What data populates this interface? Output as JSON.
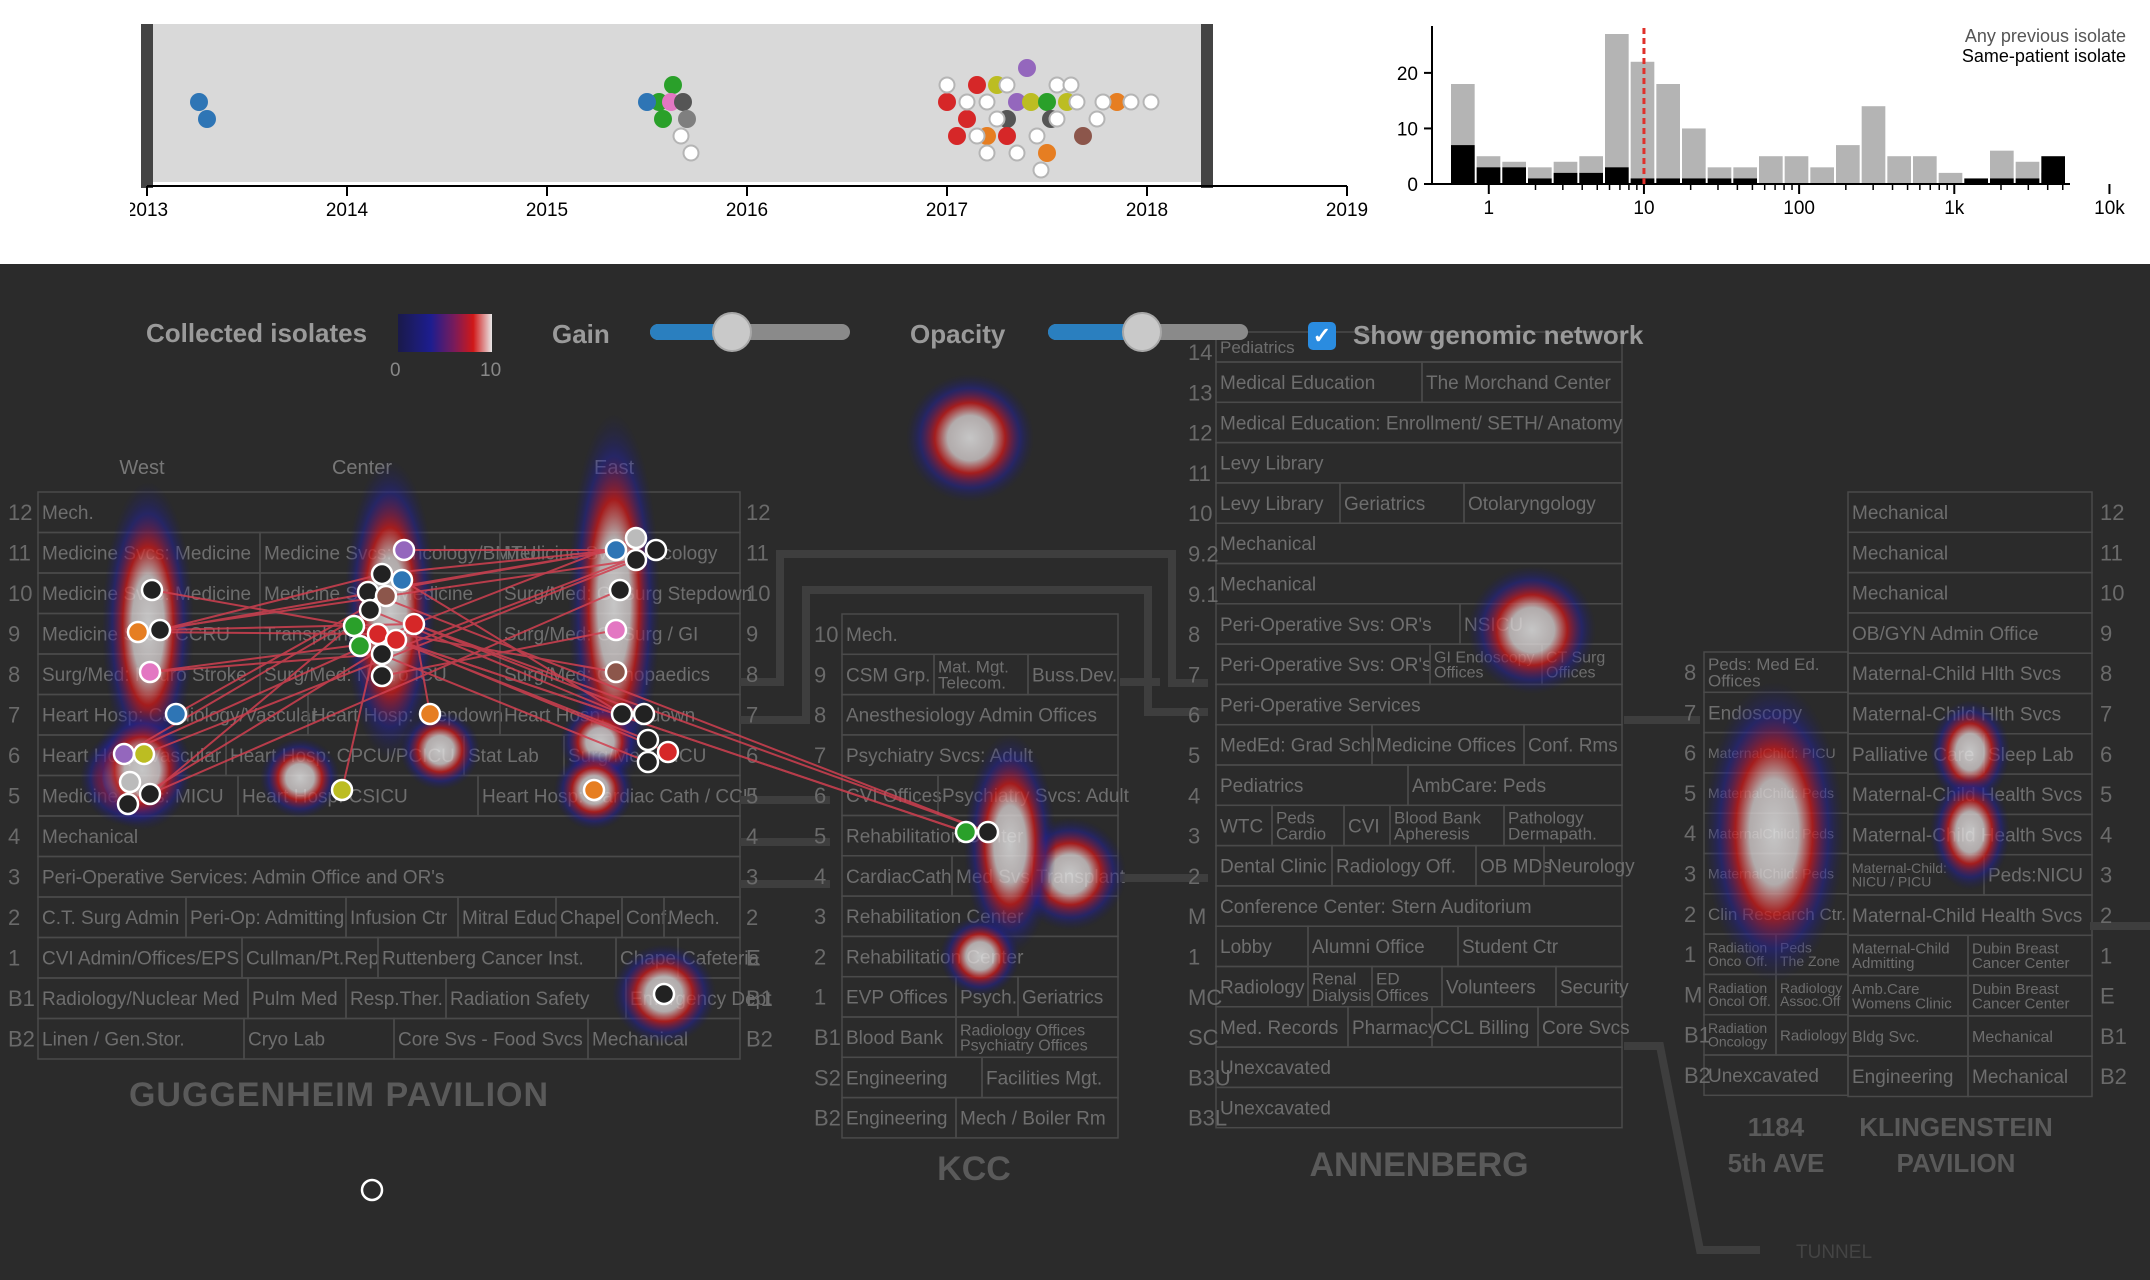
{
  "timeline": {
    "years": [
      "2013",
      "2014",
      "2015",
      "2016",
      "2017",
      "2018",
      "2019"
    ],
    "points": [
      {
        "year": 2013.26,
        "row": 0,
        "color": "#2e75b5",
        "filled": true
      },
      {
        "year": 2013.3,
        "row": 1,
        "color": "#2e75b5",
        "filled": true
      },
      {
        "year": 2015.56,
        "row": 0,
        "color": "#2aa02a",
        "filled": true
      },
      {
        "year": 2015.63,
        "row": -1,
        "color": "#2aa02a",
        "filled": true
      },
      {
        "year": 2015.62,
        "row": 0,
        "color": "#e377c2",
        "filled": true
      },
      {
        "year": 2015.58,
        "row": 1,
        "color": "#2aa02a",
        "filled": true
      },
      {
        "year": 2015.68,
        "row": 0,
        "color": "#555555",
        "filled": true
      },
      {
        "year": 2015.7,
        "row": 1,
        "color": "#7f7f7f",
        "filled": true
      },
      {
        "year": 2015.5,
        "row": 0,
        "color": "#2e75b5",
        "filled": true
      },
      {
        "year": 2015.67,
        "row": 2,
        "color": "#bbbbbb",
        "filled": false
      },
      {
        "year": 2015.72,
        "row": 3,
        "color": "#bbbbbb",
        "filled": false
      },
      {
        "year": 2017.0,
        "row": 0,
        "color": "#d62728",
        "filled": true
      },
      {
        "year": 2017.15,
        "row": -1,
        "color": "#d62728",
        "filled": true
      },
      {
        "year": 2017.25,
        "row": -1,
        "color": "#bcbd22",
        "filled": true
      },
      {
        "year": 2017.4,
        "row": -2,
        "color": "#9467bd",
        "filled": true
      },
      {
        "year": 2017.35,
        "row": 0,
        "color": "#9467bd",
        "filled": true
      },
      {
        "year": 2017.42,
        "row": 0,
        "color": "#bcbd22",
        "filled": true
      },
      {
        "year": 2017.3,
        "row": 1,
        "color": "#555555",
        "filled": true
      },
      {
        "year": 2017.5,
        "row": 0,
        "color": "#2aa02a",
        "filled": true
      },
      {
        "year": 2017.52,
        "row": 1,
        "color": "#555555",
        "filled": true
      },
      {
        "year": 2017.6,
        "row": 0,
        "color": "#bcbd22",
        "filled": true
      },
      {
        "year": 2017.1,
        "row": 1,
        "color": "#d62728",
        "filled": true
      },
      {
        "year": 2017.2,
        "row": 2,
        "color": "#e67e22",
        "filled": true
      },
      {
        "year": 2017.3,
        "row": 2,
        "color": "#d62728",
        "filled": true
      },
      {
        "year": 2017.5,
        "row": 3,
        "color": "#e67e22",
        "filled": true
      },
      {
        "year": 2017.68,
        "row": 2,
        "color": "#8c564b",
        "filled": true
      },
      {
        "year": 2017.85,
        "row": 0,
        "color": "#e67e22",
        "filled": true
      },
      {
        "year": 2017.05,
        "row": 2,
        "color": "#d62728",
        "filled": true
      },
      {
        "year": 2017.1,
        "row": 0,
        "color": "#bbbbbb",
        "filled": false
      },
      {
        "year": 2017.2,
        "row": 0,
        "color": "#bbbbbb",
        "filled": false
      },
      {
        "year": 2017.25,
        "row": 1,
        "color": "#bbbbbb",
        "filled": false
      },
      {
        "year": 2017.15,
        "row": 2,
        "color": "#bbbbbb",
        "filled": false
      },
      {
        "year": 2017.2,
        "row": 3,
        "color": "#bbbbbb",
        "filled": false
      },
      {
        "year": 2017.45,
        "row": 2,
        "color": "#bbbbbb",
        "filled": false
      },
      {
        "year": 2017.35,
        "row": 3,
        "color": "#bbbbbb",
        "filled": false
      },
      {
        "year": 2017.47,
        "row": 4,
        "color": "#bbbbbb",
        "filled": false
      },
      {
        "year": 2017.55,
        "row": -1,
        "color": "#bbbbbb",
        "filled": false
      },
      {
        "year": 2017.62,
        "row": -1,
        "color": "#bbbbbb",
        "filled": false
      },
      {
        "year": 2017.55,
        "row": 1,
        "color": "#bbbbbb",
        "filled": false
      },
      {
        "year": 2017.65,
        "row": 0,
        "color": "#bbbbbb",
        "filled": false
      },
      {
        "year": 2017.75,
        "row": 1,
        "color": "#bbbbbb",
        "filled": false
      },
      {
        "year": 2017.78,
        "row": 0,
        "color": "#bbbbbb",
        "filled": false
      },
      {
        "year": 2017.92,
        "row": 0,
        "color": "#bbbbbb",
        "filled": false
      },
      {
        "year": 2018.02,
        "row": 0,
        "color": "#bbbbbb",
        "filled": false
      },
      {
        "year": 2017.3,
        "row": -1,
        "color": "#bbbbbb",
        "filled": false
      },
      {
        "year": 2017.0,
        "row": -1,
        "color": "#bbbbbb",
        "filled": false
      }
    ]
  },
  "histogram": {
    "legend_any": "Any previous isolate",
    "legend_same": "Same-patient isolate",
    "y_ticks": [
      "0",
      "10",
      "20"
    ],
    "x_ticks": [
      "1",
      "10",
      "100",
      "1k",
      "10k"
    ],
    "chart_data": {
      "type": "bar",
      "x_scale": "log",
      "ylim": [
        0,
        27
      ],
      "any_previous": [
        18,
        5,
        4,
        3,
        4,
        5,
        27,
        22,
        18,
        10,
        3,
        3,
        5,
        5,
        3,
        7,
        14,
        5,
        5,
        2,
        1,
        6,
        4,
        2
      ],
      "same_patient": [
        7,
        3,
        3,
        1,
        2,
        2,
        3,
        1,
        1,
        1,
        1,
        1,
        0,
        0,
        0,
        0,
        0,
        0,
        0,
        0,
        1,
        1,
        1,
        5
      ],
      "threshold": 10
    }
  },
  "controls": {
    "collected_label": "Collected isolates",
    "scale_min": "0",
    "scale_max": "10",
    "gain_label": "Gain",
    "gain_value": 0.41,
    "opacity_label": "Opacity",
    "opacity_value": 0.47,
    "network_label": "Show genomic network",
    "network_checked": true
  },
  "buildings": {
    "guggenheim": {
      "name": "GUGGENHEIM PAVILION",
      "wings": [
        "West",
        "Center",
        "East"
      ],
      "floors": [
        "12",
        "11",
        "10",
        "9",
        "8",
        "7",
        "6",
        "5",
        "4",
        "3",
        "2",
        "1",
        "B1",
        "B2"
      ],
      "right_floors": [
        "12",
        "11",
        "10",
        "9",
        "8",
        "7",
        "6",
        "5",
        "4",
        "3",
        "2",
        "E",
        "B1",
        "B2"
      ],
      "rooms": [
        "Mech.",
        "Medicine Svcs: Medicine",
        "Medicine Svcs: Oncology/BMTU",
        "Medicine Svcs: Oncology",
        "Medicine Svcs: Medicine",
        "Medicine Svcs: Medicine",
        "Surg/Med: GI Surg Stepdown",
        "Medicine Svcs: CCRU",
        "Transplant",
        "Surg/Med: GI Surg / GI",
        "Surg/Med: Neuro Stroke",
        "Surg/Med: Neuro ICU",
        "Surg/Med: Orthopaedics",
        "Heart Hosp: Cardiology/Vascular",
        "Heart Hosp: Stepdown",
        "Heart Hosp: Stepdown",
        "Heart Hosp: Vascular",
        "Heart Hosp: CPCU/PCICU",
        "Stat Lab",
        "Surg/Med: SICU",
        "Medicine Svcs: MICU",
        "Heart Hosp: CSICU",
        "Heart Hosp: Cardiac Cath / CCU",
        "Mechanical",
        "Peri-Operative Services:  Admin Office and OR's",
        "C.T. Surg Admin",
        "Peri-Op: Admitting",
        "Infusion Ctr",
        "Mitral Educ",
        "Chapel",
        "Conf.",
        "Mech.",
        "CVI Admin/Offices/EPS",
        "Cullman/Pt.Rep",
        "Ruttenberg Cancer Inst.",
        "Chapel",
        "Cafeteria",
        "Radiology/Nuclear Med",
        "Pulm Med",
        "Resp.Ther.",
        "Radiation Safety",
        "Emergency Dept",
        "Linen / Gen.Stor.",
        "Cryo Lab",
        "Core Svs - Food Svcs",
        "Mechanical"
      ]
    },
    "kcc": {
      "name": "KCC",
      "floors": [
        "10",
        "9",
        "8",
        "7",
        "6",
        "5",
        "4",
        "3",
        "2",
        "1",
        "B1",
        "S2",
        "B2"
      ],
      "rooms": [
        "Mech.",
        "CSM Grp.",
        "Mat. Mgt. Telecom.",
        "Buss.Dev.",
        "Anesthesiology Admin Offices",
        "Psychiatry Svcs:  Adult",
        "CVI Offices",
        "Psychiatry Svcs: Adult",
        "Rehabilitation Center",
        "CardiacCath",
        "Med Svs",
        "Transplant",
        "Rehabilitation Center",
        "Rehabilitation Center",
        "EVP Offices",
        "Psych.",
        "Geriatrics",
        "Blood Bank",
        "Radiology Offices Psychiatry Offices",
        "Engineering",
        "Facilities Mgt.",
        "Engineering",
        "Mech / Boiler Rm"
      ]
    },
    "annenberg": {
      "name": "ANNENBERG",
      "floors": [
        "14",
        "13",
        "12",
        "11",
        "10",
        "9.2",
        "9.1",
        "8",
        "7",
        "6",
        "5",
        "4",
        "3",
        "2",
        "M",
        "1",
        "MC",
        "SC",
        "B3U",
        "B3L"
      ],
      "rooms": [
        "Pediatrics",
        "Medical Education",
        "The Morchand Center",
        "Medical Education: Enrollment/ SETH/ Anatomy",
        "Levy Library",
        "Levy Library",
        "Geriatrics",
        "Otolaryngology",
        "Mechanical",
        "Mechanical",
        "Peri-Operative Svs: OR's",
        "NSICU",
        "Peri-Operative Svs: OR's",
        "GI Endoscopy Offices",
        "CT Surg Offices",
        "Peri-Operative Services",
        "MedEd: Grad Schl",
        "Medicine Offices",
        "Conf. Rms",
        "Pediatrics",
        "AmbCare: Peds",
        "WTC",
        "Peds Cardio",
        "CVI",
        "Blood Bank Apheresis",
        "Pathology Dermapath.",
        "Dental Clinic",
        "Radiology Off.",
        "OB MDs",
        "Neurology",
        "Conference Center: Stern Auditorium",
        "Lobby",
        "Alumni Office",
        "Student Ctr",
        "Radiology",
        "Renal Dialysis",
        "ED Offices",
        "Volunteers",
        "Security",
        "Med. Records",
        "Pharmacy",
        "CCL Billing",
        "Core Svcs",
        "Unexcavated",
        "Unexcavated"
      ]
    },
    "fifth": {
      "name_line1": "1184",
      "name_line2": "5th AVE",
      "floors": [
        "8",
        "7",
        "6",
        "5",
        "4",
        "3",
        "2",
        "1",
        "M",
        "B1",
        "B2"
      ],
      "rooms": [
        "Peds: Med Ed. Offices",
        "Endoscopy",
        "MaternalChild: PICU",
        "MaternalChild: Peds",
        "MaternalChild: Peds",
        "MaternalChild: Peds",
        "Clin Research Ctr.",
        "Radiation Onco Off.",
        "Peds The Zone",
        "Radiation Oncol Off.",
        "Radiology Assoc.Off",
        "Radiation Oncology",
        "Radiology",
        "Unexcavated"
      ]
    },
    "klingenstein": {
      "name_line1": "KLINGENSTEIN",
      "name_line2": "PAVILION",
      "floors": [
        "12",
        "11",
        "10",
        "9",
        "8",
        "7",
        "6",
        "5",
        "4",
        "3",
        "2",
        "1",
        "E",
        "B1",
        "B2"
      ],
      "rooms": [
        "Mechanical",
        "Mechanical",
        "Mechanical",
        "OB/GYN Admin Office",
        "Maternal-Child Hlth Svcs",
        "Maternal-Child Hlth Svcs",
        "Palliative Care",
        "Sleep Lab",
        "Maternal-Child Health Svcs",
        "Maternal-Child Health Svcs",
        "Maternal-Child: NICU / PICU",
        "Peds:NICU",
        "Maternal-Child Health Svcs",
        "Maternal-Child Admitting",
        "Dubin Breast Cancer Center",
        "Amb.Care Womens Clinic",
        "Dubin Breast Cancer Center",
        "Bldg Svc.",
        "Mechanical",
        "Engineering",
        "Mechanical"
      ]
    },
    "tunnel_label": "TUNNEL"
  },
  "isolates": [
    {
      "id": "gw11",
      "color": "#222222"
    },
    {
      "id": "gw9a",
      "color": "#e67e22"
    },
    {
      "id": "gw9b",
      "color": "#222222"
    },
    {
      "id": "gw8",
      "color": "#e377c2"
    },
    {
      "id": "gw7",
      "color": "#2e75b5"
    },
    {
      "id": "gw6a",
      "color": "#9467bd"
    },
    {
      "id": "gw6b",
      "color": "#bcbd22"
    },
    {
      "id": "gw5a",
      "color": "#bbbbbb"
    },
    {
      "id": "gw5b",
      "color": "#222222"
    },
    {
      "id": "gw5c",
      "color": "#222222"
    },
    {
      "id": "gc11",
      "color": "#9467bd"
    },
    {
      "id": "gc10a",
      "color": "#222222"
    },
    {
      "id": "gc10b",
      "color": "#2e75b5"
    },
    {
      "id": "gc10c",
      "color": "#222222"
    },
    {
      "id": "gc10d",
      "color": "#8c564b"
    },
    {
      "id": "gc9a",
      "color": "#222222"
    },
    {
      "id": "gc9b",
      "color": "#2aa02a"
    },
    {
      "id": "gc9c",
      "color": "#d62728"
    },
    {
      "id": "gc9d",
      "color": "#d62728"
    },
    {
      "id": "gc9e",
      "color": "#d62728"
    },
    {
      "id": "gc8a",
      "color": "#2aa02a"
    },
    {
      "id": "gc8b",
      "color": "#222222"
    },
    {
      "id": "gc8c",
      "color": "#222222"
    },
    {
      "id": "gc7",
      "color": "#e67e22"
    },
    {
      "id": "gc5",
      "color": "#bcbd22"
    },
    {
      "id": "ge11a",
      "color": "#2e75b5"
    },
    {
      "id": "ge11b",
      "color": "#bbbbbb"
    },
    {
      "id": "ge11c",
      "color": "#222222"
    },
    {
      "id": "ge11d",
      "color": "#222222"
    },
    {
      "id": "ge10",
      "color": "#222222"
    },
    {
      "id": "ge9",
      "color": "#e377c2"
    },
    {
      "id": "ge8",
      "color": "#8c564b"
    },
    {
      "id": "ge7a",
      "color": "#222222"
    },
    {
      "id": "ge7b",
      "color": "#222222"
    },
    {
      "id": "ge6a",
      "color": "#222222"
    },
    {
      "id": "ge6b",
      "color": "#d62728"
    },
    {
      "id": "ge6c",
      "color": "#222222"
    },
    {
      "id": "ge5",
      "color": "#e67e22"
    },
    {
      "id": "geE",
      "color": "#222222"
    },
    {
      "id": "k4a",
      "color": "#2aa02a"
    },
    {
      "id": "k4b",
      "color": "#222222"
    },
    {
      "id": "stray",
      "color": "#2b2b2b"
    }
  ]
}
